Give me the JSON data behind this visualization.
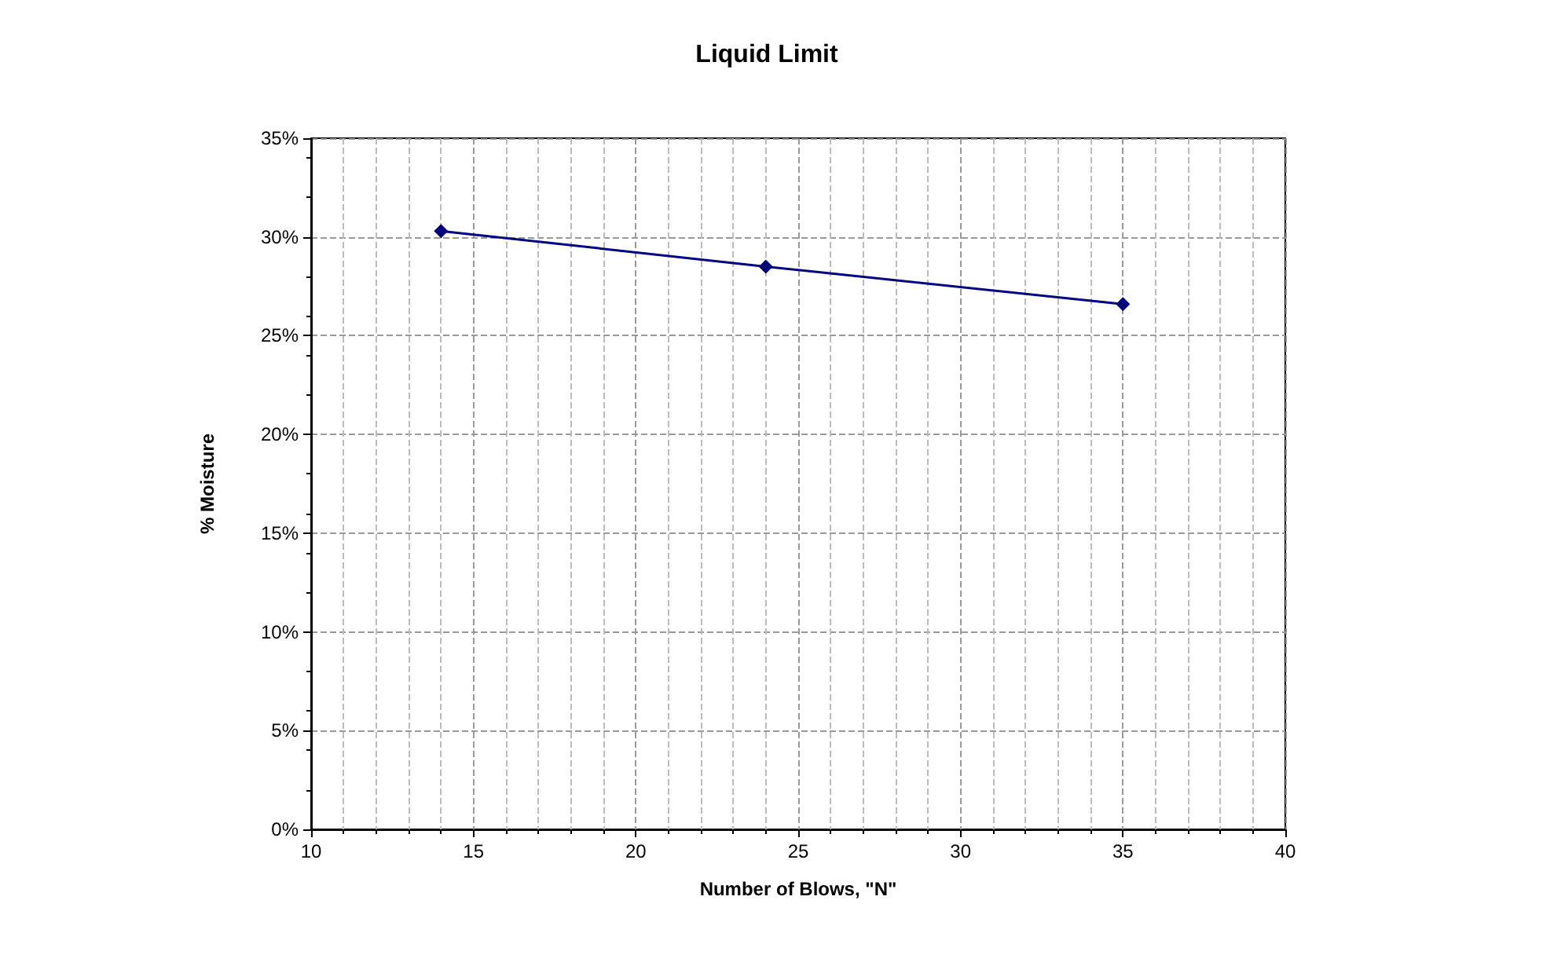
{
  "chart_data": {
    "type": "line",
    "title": "Liquid Limit",
    "xlabel": "Number of Blows, \"N\"",
    "ylabel": "% Moisture",
    "x": [
      14,
      24,
      35
    ],
    "series": [
      {
        "color": "#000080",
        "values": [
          30.3,
          28.5,
          26.6
        ]
      }
    ],
    "xlim": [
      10,
      40
    ],
    "xticks": [
      10,
      15,
      20,
      25,
      30,
      35,
      40
    ],
    "ylim": [
      0,
      35
    ],
    "yticks": [
      {
        "value": 0,
        "label": "0%"
      },
      {
        "value": 5,
        "label": "5%"
      },
      {
        "value": 10,
        "label": "10%"
      },
      {
        "value": 15,
        "label": "15%"
      },
      {
        "value": 20,
        "label": "20%"
      },
      {
        "value": 25,
        "label": "25%"
      },
      {
        "value": 30,
        "label": "30%"
      },
      {
        "value": 35,
        "label": "35%"
      }
    ],
    "grid": true,
    "marker": "diamond",
    "line_style": "solid"
  }
}
